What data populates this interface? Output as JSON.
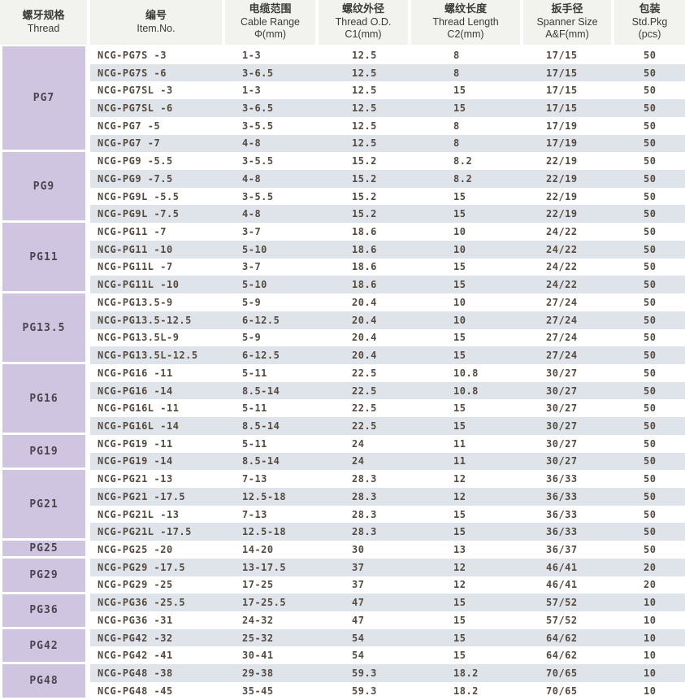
{
  "colors": {
    "group_cell_bg": "#cfc5e0",
    "stripe_bg": "#dfe4ea",
    "header_bg": "#f2f2ee",
    "text": "#554a40"
  },
  "table": {
    "columns": [
      {
        "zh": "螺牙规格",
        "en": "Thread",
        "sub": ""
      },
      {
        "zh": "编号",
        "en": "Item.No.",
        "sub": ""
      },
      {
        "zh": "电缆范围",
        "en": "Cable Range",
        "sub": "Φ(mm)"
      },
      {
        "zh": "螺纹外径",
        "en": "Thread O.D.",
        "sub": "C1(mm)"
      },
      {
        "zh": "螺纹长度",
        "en": "Thread Length",
        "sub": "C2(mm)"
      },
      {
        "zh": "扳手径",
        "en": "Spanner Size",
        "sub": "A&F(mm)"
      },
      {
        "zh": "包装",
        "en": "Std.Pkg",
        "sub": "(pcs)"
      }
    ],
    "groups": [
      {
        "thread": "PG7",
        "rows": [
          [
            "NCG-PG7S -3",
            "1-3",
            "12.5",
            "8",
            "17/15",
            "50"
          ],
          [
            "NCG-PG7S -6",
            "3-6.5",
            "12.5",
            "8",
            "17/15",
            "50"
          ],
          [
            "NCG-PG7SL -3",
            "1-3",
            "12.5",
            "15",
            "17/15",
            "50"
          ],
          [
            "NCG-PG7SL -6",
            "3-6.5",
            "12.5",
            "15",
            "17/15",
            "50"
          ],
          [
            "NCG-PG7 -5",
            "3-5.5",
            "12.5",
            "8",
            "17/19",
            "50"
          ],
          [
            "NCG-PG7 -7",
            "4-8",
            "12.5",
            "8",
            "17/19",
            "50"
          ]
        ]
      },
      {
        "thread": "PG9",
        "rows": [
          [
            "NCG-PG9 -5.5",
            "3-5.5",
            "15.2",
            "8.2",
            "22/19",
            "50"
          ],
          [
            "NCG-PG9 -7.5",
            "4-8",
            "15.2",
            "8.2",
            "22/19",
            "50"
          ],
          [
            "NCG-PG9L -5.5",
            "3-5.5",
            "15.2",
            "15",
            "22/19",
            "50"
          ],
          [
            "NCG-PG9L -7.5",
            "4-8",
            "15.2",
            "15",
            "22/19",
            "50"
          ]
        ]
      },
      {
        "thread": "PG11",
        "rows": [
          [
            "NCG-PG11 -7",
            "3-7",
            "18.6",
            "10",
            "24/22",
            "50"
          ],
          [
            "NCG-PG11 -10",
            "5-10",
            "18.6",
            "10",
            "24/22",
            "50"
          ],
          [
            "NCG-PG11L -7",
            "3-7",
            "18.6",
            "15",
            "24/22",
            "50"
          ],
          [
            "NCG-PG11L -10",
            "5-10",
            "18.6",
            "15",
            "24/22",
            "50"
          ]
        ]
      },
      {
        "thread": "PG13.5",
        "rows": [
          [
            "NCG-PG13.5-9",
            "5-9",
            "20.4",
            "10",
            "27/24",
            "50"
          ],
          [
            "NCG-PG13.5-12.5",
            "6-12.5",
            "20.4",
            "10",
            "27/24",
            "50"
          ],
          [
            "NCG-PG13.5L-9",
            "5-9",
            "20.4",
            "15",
            "27/24",
            "50"
          ],
          [
            "NCG-PG13.5L-12.5",
            "6-12.5",
            "20.4",
            "15",
            "27/24",
            "50"
          ]
        ]
      },
      {
        "thread": "PG16",
        "rows": [
          [
            "NCG-PG16 -11",
            "5-11",
            "22.5",
            "10.8",
            "30/27",
            "50"
          ],
          [
            "NCG-PG16 -14",
            "8.5-14",
            "22.5",
            "10.8",
            "30/27",
            "50"
          ],
          [
            "NCG-PG16L -11",
            "5-11",
            "22.5",
            "15",
            "30/27",
            "50"
          ],
          [
            "NCG-PG16L -14",
            "8.5-14",
            "22.5",
            "15",
            "30/27",
            "50"
          ]
        ]
      },
      {
        "thread": "PG19",
        "rows": [
          [
            "NCG-PG19 -11",
            "5-11",
            "24",
            "11",
            "30/27",
            "50"
          ],
          [
            "NCG-PG19 -14",
            "8.5-14",
            "24",
            "11",
            "30/27",
            "50"
          ]
        ]
      },
      {
        "thread": "PG21",
        "rows": [
          [
            "NCG-PG21 -13",
            "7-13",
            "28.3",
            "12",
            "36/33",
            "50"
          ],
          [
            "NCG-PG21 -17.5",
            "12.5-18",
            "28.3",
            "12",
            "36/33",
            "50"
          ],
          [
            "NCG-PG21L -13",
            "7-13",
            "28.3",
            "15",
            "36/33",
            "50"
          ],
          [
            "NCG-PG21L -17.5",
            "12.5-18",
            "28.3",
            "15",
            "36/33",
            "50"
          ]
        ]
      },
      {
        "thread": "PG25",
        "rows": [
          [
            "NCG-PG25 -20",
            "14-20",
            "30",
            "13",
            "36/37",
            "50"
          ]
        ]
      },
      {
        "thread": "PG29",
        "rows": [
          [
            "NCG-PG29 -17.5",
            "13-17.5",
            "37",
            "12",
            "46/41",
            "20"
          ],
          [
            "NCG-PG29 -25",
            "17-25",
            "37",
            "12",
            "46/41",
            "20"
          ]
        ]
      },
      {
        "thread": "PG36",
        "rows": [
          [
            "NCG-PG36 -25.5",
            "17-25.5",
            "47",
            "15",
            "57/52",
            "10"
          ],
          [
            "NCG-PG36 -31",
            "24-32",
            "47",
            "15",
            "57/52",
            "10"
          ]
        ]
      },
      {
        "thread": "PG42",
        "rows": [
          [
            "NCG-PG42 -32",
            "25-32",
            "54",
            "15",
            "64/62",
            "10"
          ],
          [
            "NCG-PG42 -41",
            "30-41",
            "54",
            "15",
            "64/62",
            "10"
          ]
        ]
      },
      {
        "thread": "PG48",
        "rows": [
          [
            "NCG-PG48 -38",
            "29-38",
            "59.3",
            "18.2",
            "70/65",
            "10"
          ],
          [
            "NCG-PG48 -45",
            "35-45",
            "59.3",
            "18.2",
            "70/65",
            "10"
          ]
        ]
      }
    ]
  }
}
